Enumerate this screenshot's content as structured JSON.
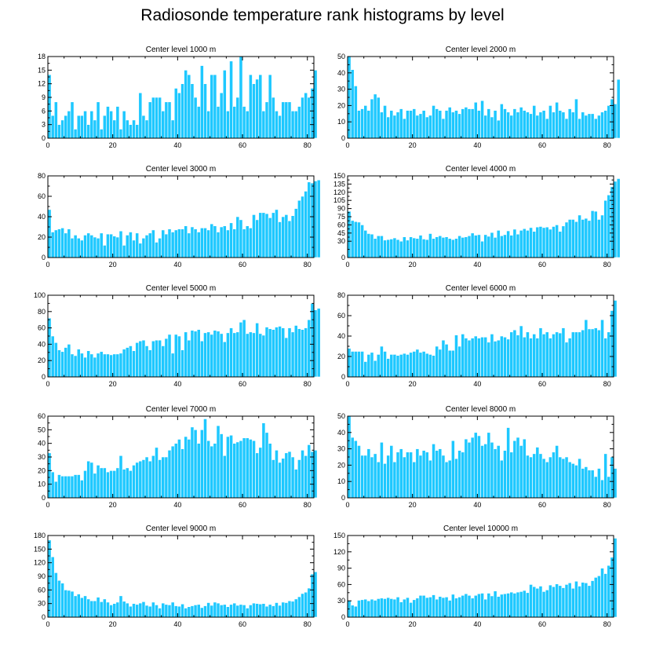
{
  "title": "Radiosonde temperature rank histograms by level",
  "colors": {
    "bar": "#1ec8ff",
    "bar_edge": "#ffffff",
    "axis": "#000000"
  },
  "chart_data": [
    {
      "type": "bar",
      "title": "Center level 1000 m",
      "xlabel": "",
      "ylabel": "",
      "xlim": [
        0,
        82
      ],
      "ylim": [
        0,
        18
      ],
      "xticks": [
        0,
        20,
        40,
        60,
        80
      ],
      "yticks": [
        0,
        3,
        6,
        9,
        12,
        15,
        18
      ],
      "values": [
        14,
        5,
        8,
        3,
        4,
        5,
        6,
        8,
        2,
        5,
        5,
        6,
        3,
        6,
        4,
        8,
        2,
        5,
        7,
        6,
        4,
        7,
        2,
        6,
        4,
        3,
        4,
        3,
        10,
        5,
        4,
        8,
        9,
        9,
        9,
        6,
        8,
        8,
        4,
        11,
        10,
        12,
        15,
        14,
        12,
        9,
        7,
        16,
        12,
        6,
        14,
        14,
        7,
        10,
        15,
        6,
        17,
        7,
        9,
        18,
        7,
        6,
        14,
        12,
        13,
        14,
        6,
        8,
        14,
        9,
        6,
        5,
        8,
        8,
        8,
        6,
        6,
        7,
        9,
        10,
        9,
        11,
        15
      ]
    },
    {
      "type": "bar",
      "title": "Center level 2000 m",
      "xlabel": "",
      "ylabel": "",
      "xlim": [
        0,
        82
      ],
      "ylim": [
        0,
        50
      ],
      "xticks": [
        0,
        20,
        40,
        60,
        80
      ],
      "yticks": [
        0,
        10,
        20,
        30,
        40,
        50
      ],
      "values": [
        50,
        42,
        32,
        17,
        18,
        20,
        17,
        24,
        27,
        25,
        16,
        20,
        13,
        17,
        14,
        16,
        18,
        12,
        17,
        17,
        18,
        14,
        15,
        17,
        13,
        14,
        20,
        18,
        17,
        12,
        17,
        19,
        16,
        17,
        15,
        18,
        19,
        18,
        18,
        22,
        17,
        23,
        14,
        18,
        13,
        17,
        11,
        21,
        18,
        16,
        14,
        18,
        16,
        19,
        17,
        16,
        15,
        20,
        14,
        16,
        17,
        12,
        20,
        16,
        22,
        17,
        16,
        12,
        18,
        16,
        24,
        12,
        16,
        14,
        15,
        15,
        12,
        14,
        16,
        17,
        20,
        24,
        21,
        36
      ]
    },
    {
      "type": "bar",
      "title": "Center level 3000 m",
      "xlabel": "",
      "ylabel": "",
      "xlim": [
        0,
        82
      ],
      "ylim": [
        0,
        80
      ],
      "xticks": [
        0,
        20,
        40,
        60,
        80
      ],
      "yticks": [
        0,
        20,
        40,
        60,
        80
      ],
      "values": [
        47,
        25,
        27,
        28,
        29,
        24,
        28,
        19,
        22,
        19,
        17,
        22,
        24,
        22,
        20,
        19,
        24,
        12,
        23,
        23,
        21,
        20,
        26,
        12,
        22,
        25,
        17,
        24,
        14,
        19,
        22,
        24,
        27,
        15,
        19,
        27,
        23,
        28,
        25,
        27,
        28,
        28,
        31,
        24,
        30,
        28,
        25,
        29,
        29,
        27,
        33,
        31,
        25,
        30,
        31,
        27,
        34,
        28,
        40,
        37,
        28,
        31,
        29,
        42,
        37,
        44,
        44,
        43,
        39,
        44,
        47,
        35,
        40,
        42,
        36,
        41,
        48,
        56,
        60,
        65,
        74,
        73,
        75,
        76
      ]
    },
    {
      "type": "bar",
      "title": "Center level 4000 m",
      "xlabel": "",
      "ylabel": "",
      "xlim": [
        0,
        82
      ],
      "ylim": [
        0,
        150
      ],
      "xticks": [
        0,
        20,
        40,
        60,
        80
      ],
      "yticks": [
        0,
        30,
        45,
        60,
        75,
        90,
        105,
        120,
        135,
        150
      ],
      "ytick_labels": [
        "0",
        "30",
        "45",
        "60",
        "75",
        "90",
        "105",
        "120",
        "135",
        "150"
      ],
      "values": [
        85,
        68,
        66,
        65,
        60,
        50,
        44,
        43,
        35,
        40,
        40,
        32,
        33,
        34,
        36,
        33,
        30,
        38,
        32,
        38,
        36,
        35,
        41,
        34,
        33,
        44,
        35,
        38,
        40,
        37,
        38,
        35,
        33,
        35,
        40,
        37,
        38,
        40,
        45,
        41,
        42,
        30,
        42,
        39,
        46,
        37,
        50,
        40,
        42,
        49,
        41,
        52,
        43,
        50,
        53,
        50,
        55,
        48,
        56,
        57,
        55,
        56,
        52,
        57,
        60,
        48,
        58,
        65,
        70,
        70,
        66,
        78,
        70,
        72,
        68,
        86,
        85,
        70,
        78,
        105,
        115,
        130,
        140,
        145
      ]
    },
    {
      "type": "bar",
      "title": "Center level 5000 m",
      "xlabel": "",
      "ylabel": "",
      "xlim": [
        0,
        82
      ],
      "ylim": [
        0,
        100
      ],
      "xticks": [
        0,
        20,
        40,
        60,
        80
      ],
      "yticks": [
        0,
        20,
        40,
        60,
        80,
        100
      ],
      "values": [
        72,
        50,
        42,
        33,
        31,
        36,
        40,
        28,
        26,
        34,
        29,
        24,
        32,
        28,
        24,
        29,
        31,
        28,
        28,
        27,
        28,
        28,
        29,
        34,
        36,
        38,
        32,
        42,
        44,
        45,
        38,
        33,
        44,
        45,
        45,
        38,
        47,
        52,
        29,
        52,
        50,
        33,
        55,
        45,
        57,
        56,
        58,
        44,
        54,
        55,
        52,
        57,
        56,
        53,
        43,
        54,
        60,
        54,
        55,
        67,
        70,
        53,
        55,
        54,
        66,
        53,
        51,
        61,
        59,
        58,
        61,
        62,
        60,
        48,
        60,
        55,
        63,
        59,
        58,
        60,
        70,
        90,
        82,
        84
      ]
    },
    {
      "type": "bar",
      "title": "Center level 6000 m",
      "xlabel": "",
      "ylabel": "",
      "xlim": [
        0,
        82
      ],
      "ylim": [
        0,
        80
      ],
      "xticks": [
        0,
        20,
        40,
        60,
        80
      ],
      "yticks": [
        0,
        20,
        40,
        60,
        80
      ],
      "values": [
        28,
        25,
        25,
        25,
        25,
        15,
        22,
        24,
        16,
        22,
        30,
        25,
        18,
        22,
        22,
        21,
        22,
        23,
        22,
        24,
        25,
        27,
        24,
        25,
        23,
        22,
        21,
        30,
        27,
        36,
        32,
        26,
        26,
        41,
        30,
        42,
        38,
        36,
        38,
        40,
        38,
        39,
        39,
        34,
        42,
        35,
        36,
        40,
        39,
        37,
        44,
        46,
        41,
        50,
        39,
        44,
        38,
        42,
        38,
        48,
        42,
        44,
        38,
        42,
        44,
        43,
        48,
        34,
        38,
        44,
        44,
        44,
        46,
        56,
        47,
        47,
        48,
        46,
        56,
        38,
        44,
        65,
        75
      ]
    },
    {
      "type": "bar",
      "title": "Center level 7000 m",
      "xlabel": "",
      "ylabel": "",
      "xlim": [
        0,
        82
      ],
      "ylim": [
        0,
        60
      ],
      "xticks": [
        0,
        20,
        40,
        60,
        80
      ],
      "yticks": [
        0,
        10,
        20,
        30,
        40,
        50,
        60
      ],
      "values": [
        33,
        19,
        12,
        17,
        16,
        16,
        16,
        16,
        17,
        17,
        13,
        20,
        27,
        26,
        18,
        24,
        22,
        22,
        19,
        20,
        20,
        22,
        31,
        21,
        22,
        20,
        24,
        26,
        27,
        28,
        30,
        27,
        31,
        37,
        28,
        30,
        30,
        35,
        38,
        40,
        43,
        36,
        45,
        43,
        52,
        50,
        40,
        50,
        58,
        42,
        38,
        40,
        53,
        47,
        31,
        45,
        46,
        40,
        41,
        42,
        44,
        44,
        43,
        42,
        33,
        37,
        55,
        48,
        40,
        28,
        35,
        26,
        29,
        33,
        34,
        30,
        21,
        28,
        35,
        31,
        39,
        34,
        35
      ]
    },
    {
      "type": "bar",
      "title": "Center level 8000 m",
      "xlabel": "",
      "ylabel": "",
      "xlim": [
        0,
        82
      ],
      "ylim": [
        0,
        50
      ],
      "xticks": [
        0,
        20,
        40,
        60,
        80
      ],
      "yticks": [
        0,
        10,
        20,
        30,
        40,
        50
      ],
      "values": [
        50,
        37,
        35,
        32,
        26,
        26,
        30,
        25,
        27,
        22,
        34,
        21,
        26,
        32,
        22,
        28,
        30,
        25,
        28,
        28,
        22,
        30,
        26,
        29,
        28,
        23,
        33,
        29,
        30,
        26,
        22,
        23,
        35,
        24,
        29,
        28,
        36,
        34,
        37,
        40,
        38,
        32,
        33,
        40,
        34,
        30,
        32,
        23,
        29,
        43,
        28,
        35,
        37,
        32,
        36,
        26,
        25,
        27,
        31,
        27,
        24,
        22,
        25,
        28,
        32,
        25,
        24,
        25,
        22,
        21,
        20,
        24,
        18,
        19,
        17,
        17,
        13,
        18,
        11,
        27,
        13,
        25,
        18
      ]
    },
    {
      "type": "bar",
      "title": "Center level 9000 m",
      "xlabel": "",
      "ylabel": "",
      "xlim": [
        0,
        82
      ],
      "ylim": [
        0,
        180
      ],
      "xticks": [
        0,
        20,
        40,
        60,
        80
      ],
      "yticks": [
        0,
        30,
        60,
        90,
        120,
        150,
        180
      ],
      "values": [
        170,
        133,
        98,
        81,
        75,
        60,
        59,
        57,
        47,
        51,
        43,
        47,
        40,
        36,
        36,
        44,
        34,
        40,
        33,
        27,
        30,
        33,
        47,
        35,
        31,
        24,
        30,
        28,
        31,
        34,
        26,
        24,
        33,
        27,
        20,
        31,
        28,
        27,
        33,
        25,
        24,
        29,
        20,
        23,
        25,
        27,
        28,
        21,
        25,
        32,
        26,
        33,
        31,
        27,
        28,
        23,
        28,
        31,
        26,
        28,
        27,
        20,
        27,
        31,
        30,
        29,
        30,
        24,
        28,
        25,
        32,
        26,
        33,
        32,
        36,
        35,
        40,
        45,
        52,
        55,
        64,
        95,
        100
      ]
    },
    {
      "type": "bar",
      "title": "Center level 10000 m",
      "xlabel": "",
      "ylabel": "",
      "xlim": [
        0,
        82
      ],
      "ylim": [
        0,
        150
      ],
      "xticks": [
        0,
        20,
        40,
        60,
        80
      ],
      "yticks": [
        0,
        30,
        60,
        90,
        120,
        150
      ],
      "values": [
        30,
        22,
        20,
        31,
        32,
        33,
        30,
        33,
        31,
        34,
        35,
        34,
        36,
        34,
        33,
        37,
        28,
        33,
        36,
        27,
        32,
        35,
        40,
        40,
        36,
        37,
        41,
        33,
        38,
        36,
        37,
        31,
        42,
        35,
        37,
        40,
        43,
        40,
        35,
        40,
        43,
        44,
        33,
        44,
        39,
        48,
        38,
        42,
        43,
        44,
        46,
        44,
        46,
        47,
        49,
        45,
        60,
        56,
        53,
        57,
        47,
        50,
        59,
        56,
        61,
        58,
        54,
        60,
        63,
        53,
        66,
        57,
        64,
        63,
        58,
        67,
        73,
        76,
        90,
        80,
        95,
        110,
        145
      ]
    }
  ]
}
